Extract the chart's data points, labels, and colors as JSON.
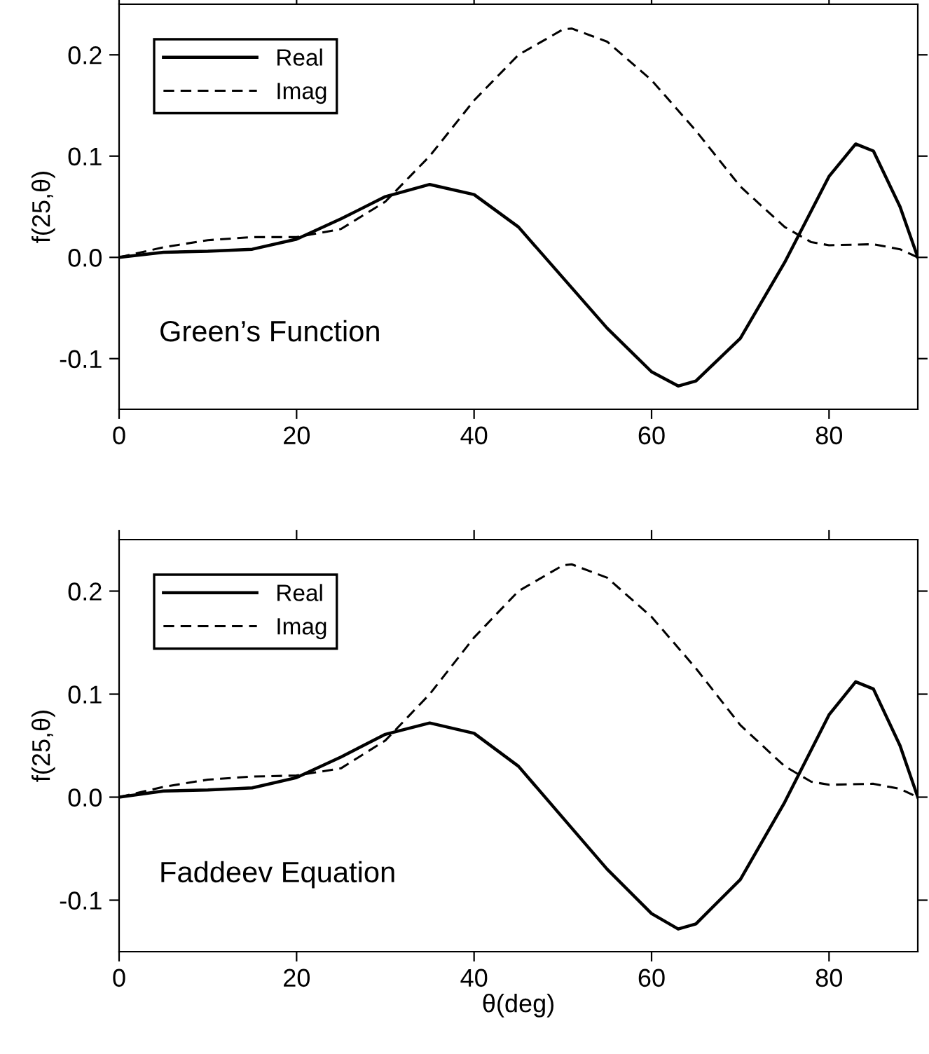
{
  "chart_data": [
    {
      "type": "line",
      "ylabel": "f(25,θ)",
      "annotations": [
        "Green’s Function"
      ],
      "legend": "top left",
      "grid": false,
      "marker": "none",
      "xlim": [
        0,
        90
      ],
      "xticks": [
        0,
        20,
        40,
        60,
        80
      ],
      "ylim": [
        -0.15,
        0.25
      ],
      "yticks": [
        {
          "value": -0.1,
          "label": "-0.1"
        },
        {
          "value": 0,
          "label": "0.0"
        },
        {
          "value": 0.1,
          "label": "0.1"
        },
        {
          "value": 0.2,
          "label": "0.2"
        }
      ],
      "series": [
        {
          "name": "Real",
          "color": "#000000",
          "line_style": "solid",
          "x": [
            0,
            5,
            10,
            15,
            20,
            25,
            30,
            35,
            40,
            45,
            50,
            55,
            60,
            63,
            65,
            70,
            75,
            80,
            83,
            85,
            88,
            90
          ],
          "values": [
            0,
            0.005,
            0.006,
            0.008,
            0.018,
            0.038,
            0.06,
            0.072,
            0.062,
            0.03,
            -0.02,
            -0.07,
            -0.113,
            -0.127,
            -0.122,
            -0.08,
            -0.005,
            0.08,
            0.112,
            0.105,
            0.05,
            0
          ]
        },
        {
          "name": "Imag",
          "color": "#000000",
          "line_style": "dashed",
          "x": [
            0,
            5,
            10,
            15,
            20,
            25,
            30,
            35,
            40,
            45,
            50,
            51,
            55,
            60,
            65,
            70,
            75,
            78,
            80,
            85,
            88,
            90
          ],
          "values": [
            0,
            0.01,
            0.017,
            0.02,
            0.02,
            0.028,
            0.055,
            0.1,
            0.155,
            0.2,
            0.225,
            0.226,
            0.213,
            0.175,
            0.125,
            0.07,
            0.03,
            0.015,
            0.012,
            0.013,
            0.008,
            0
          ]
        }
      ]
    },
    {
      "type": "line",
      "xlabel": "θ(deg)",
      "ylabel": "f(25,θ)",
      "annotations": [
        "Faddeev Equation"
      ],
      "legend": "top left",
      "grid": false,
      "marker": "none",
      "xlim": [
        0,
        90
      ],
      "xticks": [
        0,
        20,
        40,
        60,
        80
      ],
      "ylim": [
        -0.15,
        0.25
      ],
      "yticks": [
        {
          "value": -0.1,
          "label": "-0.1"
        },
        {
          "value": 0,
          "label": "0.0"
        },
        {
          "value": 0.1,
          "label": "0.1"
        },
        {
          "value": 0.2,
          "label": "0.2"
        }
      ],
      "series": [
        {
          "name": "Real",
          "color": "#000000",
          "line_style": "solid",
          "x": [
            0,
            5,
            10,
            15,
            20,
            25,
            30,
            35,
            40,
            45,
            50,
            55,
            60,
            63,
            65,
            70,
            75,
            80,
            83,
            85,
            88,
            90
          ],
          "values": [
            0,
            0.006,
            0.007,
            0.009,
            0.019,
            0.039,
            0.061,
            0.072,
            0.062,
            0.03,
            -0.02,
            -0.07,
            -0.113,
            -0.128,
            -0.123,
            -0.08,
            -0.005,
            0.08,
            0.112,
            0.105,
            0.05,
            0
          ]
        },
        {
          "name": "Imag",
          "color": "#000000",
          "line_style": "dashed",
          "x": [
            0,
            5,
            10,
            15,
            20,
            25,
            30,
            35,
            40,
            45,
            50,
            51,
            55,
            60,
            65,
            70,
            75,
            78,
            80,
            85,
            88,
            90
          ],
          "values": [
            0,
            0.01,
            0.017,
            0.02,
            0.021,
            0.028,
            0.055,
            0.1,
            0.155,
            0.2,
            0.225,
            0.226,
            0.213,
            0.175,
            0.125,
            0.07,
            0.03,
            0.015,
            0.012,
            0.013,
            0.008,
            0
          ]
        }
      ]
    }
  ]
}
